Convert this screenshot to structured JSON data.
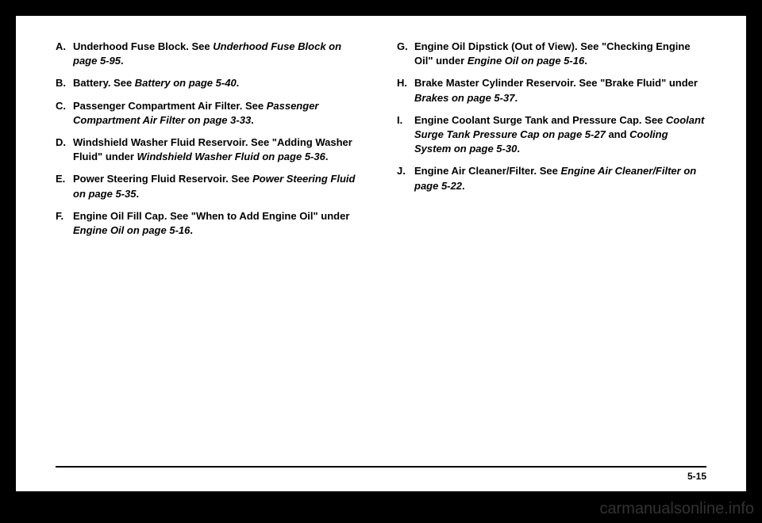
{
  "left_items": [
    {
      "letter": "A.",
      "text": "Underhood Fuse Block. See ",
      "italic": "Underhood Fuse Block on page 5-95",
      "suffix": "."
    },
    {
      "letter": "B.",
      "text": "Battery. See ",
      "italic": "Battery on page 5-40",
      "suffix": "."
    },
    {
      "letter": "C.",
      "text": "Passenger Compartment Air Filter. See ",
      "italic": "Passenger Compartment Air Filter on page 3-33",
      "suffix": "."
    },
    {
      "letter": "D.",
      "text": "Windshield Washer Fluid Reservoir. See \"Adding Washer Fluid\" under ",
      "italic": "Windshield Washer Fluid on page 5-36",
      "suffix": "."
    },
    {
      "letter": "E.",
      "text": "Power Steering Fluid Reservoir. See ",
      "italic": "Power Steering Fluid on page 5-35",
      "suffix": "."
    },
    {
      "letter": "F.",
      "text": "Engine Oil Fill Cap. See \"When to Add Engine Oil\" under ",
      "italic": "Engine Oil on page 5-16",
      "suffix": "."
    }
  ],
  "right_items": [
    {
      "letter": "G.",
      "text": "Engine Oil Dipstick (Out of View). See \"Checking Engine Oil\" under ",
      "italic": "Engine Oil on page 5-16",
      "suffix": "."
    },
    {
      "letter": "H.",
      "text": "Brake Master Cylinder Reservoir. See \"Brake Fluid\" under ",
      "italic": "Brakes on page 5-37",
      "suffix": "."
    },
    {
      "letter": "I.",
      "text": "Engine Coolant Surge Tank and Pressure Cap. See ",
      "italic": "Coolant Surge Tank Pressure Cap on page 5-27",
      "mid": " and ",
      "italic2": "Cooling System on page 5-30",
      "suffix": "."
    },
    {
      "letter": "J.",
      "text": "Engine Air Cleaner/Filter. See ",
      "italic": "Engine Air Cleaner/Filter on page 5-22",
      "suffix": "."
    }
  ],
  "page_number": "5-15",
  "watermark": "carmanualsonline.info"
}
